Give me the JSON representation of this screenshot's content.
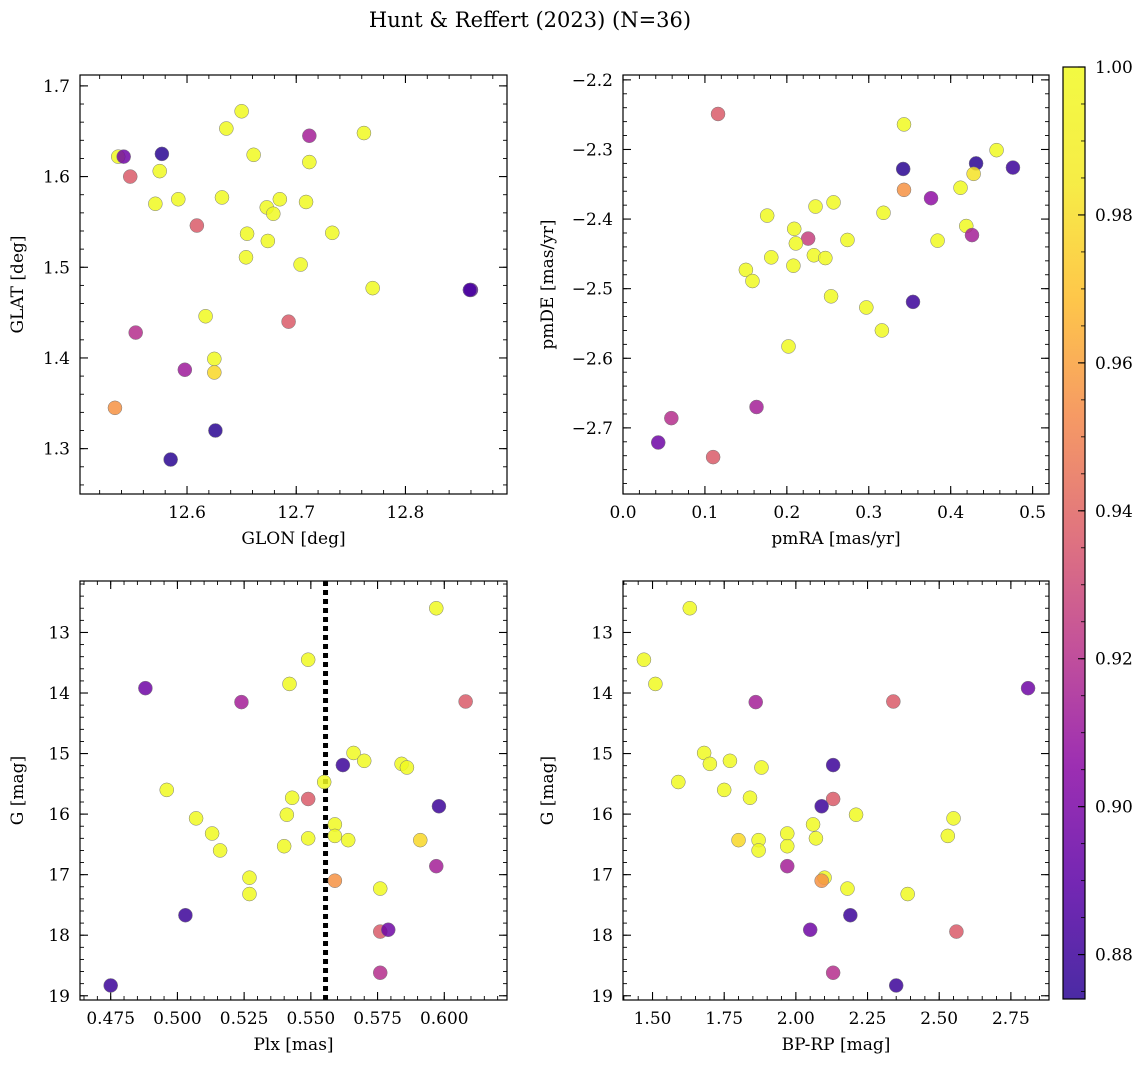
{
  "title": "Hunt & Reffert (2023) (N=36)",
  "colorbar": {
    "range": [
      0.874,
      1.0
    ],
    "ticks": [
      0.88,
      0.9,
      0.92,
      0.94,
      0.96,
      0.98,
      1.0
    ],
    "tick_labels": [
      "0.88",
      "0.90",
      "0.92",
      "0.94",
      "0.96",
      "0.98",
      "1.00"
    ],
    "colormap": "plasma"
  },
  "chart_data": [
    {
      "type": "scatter",
      "id": "pos",
      "xlabel": "GLON [deg]",
      "ylabel": "GLAT [deg]",
      "xlim": [
        12.502,
        12.893
      ],
      "ylim": [
        1.25,
        1.712
      ],
      "y_inverted": false,
      "xticks": [
        12.6,
        12.7,
        12.8
      ],
      "xtick_labels": [
        "12.6",
        "12.7",
        "12.8"
      ],
      "yticks": [
        1.3,
        1.4,
        1.5,
        1.6,
        1.7
      ],
      "ytick_labels": [
        "1.3",
        "1.4",
        "1.5",
        "1.6",
        "1.7"
      ],
      "x_minor_step": 0.02,
      "y_minor_step": 0.02,
      "points": [
        {
          "x": 12.537,
          "y": 1.622,
          "c": 1.0
        },
        {
          "x": 12.542,
          "y": 1.622,
          "c": 0.895
        },
        {
          "x": 12.548,
          "y": 1.6,
          "c": 0.935
        },
        {
          "x": 12.577,
          "y": 1.625,
          "c": 0.878
        },
        {
          "x": 12.575,
          "y": 1.606,
          "c": 1.0
        },
        {
          "x": 12.592,
          "y": 1.575,
          "c": 1.0
        },
        {
          "x": 12.571,
          "y": 1.57,
          "c": 1.0
        },
        {
          "x": 12.609,
          "y": 1.546,
          "c": 0.935
        },
        {
          "x": 12.632,
          "y": 1.577,
          "c": 1.0
        },
        {
          "x": 12.636,
          "y": 1.653,
          "c": 1.0
        },
        {
          "x": 12.65,
          "y": 1.672,
          "c": 1.0
        },
        {
          "x": 12.661,
          "y": 1.624,
          "c": 1.0
        },
        {
          "x": 12.712,
          "y": 1.645,
          "c": 0.912
        },
        {
          "x": 12.762,
          "y": 1.648,
          "c": 1.0
        },
        {
          "x": 12.712,
          "y": 1.616,
          "c": 1.0
        },
        {
          "x": 12.685,
          "y": 1.575,
          "c": 1.0
        },
        {
          "x": 12.709,
          "y": 1.572,
          "c": 1.0
        },
        {
          "x": 12.673,
          "y": 1.566,
          "c": 1.0
        },
        {
          "x": 12.679,
          "y": 1.559,
          "c": 1.0
        },
        {
          "x": 12.655,
          "y": 1.537,
          "c": 1.0
        },
        {
          "x": 12.674,
          "y": 1.529,
          "c": 1.0
        },
        {
          "x": 12.654,
          "y": 1.511,
          "c": 1.0
        },
        {
          "x": 12.733,
          "y": 1.538,
          "c": 1.0
        },
        {
          "x": 12.704,
          "y": 1.503,
          "c": 1.0
        },
        {
          "x": 12.77,
          "y": 1.477,
          "c": 1.0
        },
        {
          "x": 12.86,
          "y": 1.475,
          "c": 0.89
        },
        {
          "x": 12.553,
          "y": 1.428,
          "c": 0.918
        },
        {
          "x": 12.617,
          "y": 1.446,
          "c": 1.0
        },
        {
          "x": 12.693,
          "y": 1.44,
          "c": 0.935
        },
        {
          "x": 12.625,
          "y": 1.399,
          "c": 1.0
        },
        {
          "x": 12.625,
          "y": 1.384,
          "c": 0.975
        },
        {
          "x": 12.598,
          "y": 1.387,
          "c": 0.91
        },
        {
          "x": 12.534,
          "y": 1.345,
          "c": 0.955
        },
        {
          "x": 12.626,
          "y": 1.32,
          "c": 0.878
        },
        {
          "x": 12.585,
          "y": 1.288,
          "c": 0.878
        },
        {
          "x": 12.859,
          "y": 1.475,
          "c": 0.885
        }
      ]
    },
    {
      "type": "scatter",
      "id": "pm",
      "xlabel": "pmRA [mas/yr]",
      "ylabel": "pmDE [mas/yr]",
      "xlim": [
        0.0,
        0.52
      ],
      "ylim": [
        -2.795,
        -2.193
      ],
      "y_inverted": false,
      "xticks": [
        0.0,
        0.1,
        0.2,
        0.3,
        0.4,
        0.5
      ],
      "xtick_labels": [
        "0.0",
        "0.1",
        "0.2",
        "0.3",
        "0.4",
        "0.5"
      ],
      "yticks": [
        -2.7,
        -2.6,
        -2.5,
        -2.4,
        -2.3,
        -2.2
      ],
      "ytick_labels": [
        "−2.7",
        "−2.6",
        "−2.5",
        "−2.4",
        "−2.3",
        "−2.2"
      ],
      "x_minor_step": 0.02,
      "y_minor_step": 0.02,
      "points": [
        {
          "x": 0.116,
          "y": -2.249,
          "c": 0.935
        },
        {
          "x": 0.343,
          "y": -2.264,
          "c": 1.0
        },
        {
          "x": 0.456,
          "y": -2.301,
          "c": 1.0
        },
        {
          "x": 0.342,
          "y": -2.328,
          "c": 0.878
        },
        {
          "x": 0.431,
          "y": -2.32,
          "c": 0.878
        },
        {
          "x": 0.476,
          "y": -2.326,
          "c": 0.882
        },
        {
          "x": 0.428,
          "y": -2.335,
          "c": 0.978
        },
        {
          "x": 0.343,
          "y": -2.358,
          "c": 0.955
        },
        {
          "x": 0.412,
          "y": -2.355,
          "c": 1.0
        },
        {
          "x": 0.376,
          "y": -2.37,
          "c": 0.905
        },
        {
          "x": 0.257,
          "y": -2.376,
          "c": 1.0
        },
        {
          "x": 0.235,
          "y": -2.382,
          "c": 1.0
        },
        {
          "x": 0.176,
          "y": -2.395,
          "c": 1.0
        },
        {
          "x": 0.318,
          "y": -2.391,
          "c": 1.0
        },
        {
          "x": 0.209,
          "y": -2.414,
          "c": 1.0
        },
        {
          "x": 0.419,
          "y": -2.41,
          "c": 1.0
        },
        {
          "x": 0.226,
          "y": -2.428,
          "c": 0.925
        },
        {
          "x": 0.211,
          "y": -2.435,
          "c": 1.0
        },
        {
          "x": 0.274,
          "y": -2.43,
          "c": 1.0
        },
        {
          "x": 0.384,
          "y": -2.431,
          "c": 1.0
        },
        {
          "x": 0.426,
          "y": -2.423,
          "c": 0.912
        },
        {
          "x": 0.181,
          "y": -2.455,
          "c": 1.0
        },
        {
          "x": 0.233,
          "y": -2.452,
          "c": 1.0
        },
        {
          "x": 0.247,
          "y": -2.456,
          "c": 1.0
        },
        {
          "x": 0.208,
          "y": -2.467,
          "c": 1.0
        },
        {
          "x": 0.15,
          "y": -2.473,
          "c": 1.0
        },
        {
          "x": 0.158,
          "y": -2.489,
          "c": 1.0
        },
        {
          "x": 0.254,
          "y": -2.511,
          "c": 1.0
        },
        {
          "x": 0.354,
          "y": -2.519,
          "c": 0.882
        },
        {
          "x": 0.297,
          "y": -2.527,
          "c": 1.0
        },
        {
          "x": 0.316,
          "y": -2.56,
          "c": 1.0
        },
        {
          "x": 0.202,
          "y": -2.583,
          "c": 1.0
        },
        {
          "x": 0.163,
          "y": -2.67,
          "c": 0.912
        },
        {
          "x": 0.059,
          "y": -2.686,
          "c": 0.918
        },
        {
          "x": 0.043,
          "y": -2.721,
          "c": 0.895
        },
        {
          "x": 0.11,
          "y": -2.742,
          "c": 0.935
        }
      ]
    },
    {
      "type": "scatter",
      "id": "cmd-plx",
      "xlabel": "Plx [mas]",
      "ylabel": "G [mag]",
      "xlim": [
        0.4635,
        0.6235
      ],
      "ylim": [
        19.07,
        12.15
      ],
      "y_inverted": true,
      "xticks": [
        0.475,
        0.5,
        0.525,
        0.55,
        0.575,
        0.6
      ],
      "xtick_labels": [
        "0.475",
        "0.500",
        "0.525",
        "0.550",
        "0.575",
        "0.600"
      ],
      "yticks": [
        13,
        14,
        15,
        16,
        17,
        18,
        19
      ],
      "ytick_labels": [
        "13",
        "14",
        "15",
        "16",
        "17",
        "18",
        "19"
      ],
      "x_minor_step": 0.005,
      "y_minor_step": 0.2,
      "vline": {
        "x": 0.5555,
        "style": "dotted"
      },
      "points": [
        {
          "x": 0.597,
          "y": 12.6,
          "c": 1.0
        },
        {
          "x": 0.549,
          "y": 13.45,
          "c": 1.0
        },
        {
          "x": 0.542,
          "y": 13.85,
          "c": 1.0
        },
        {
          "x": 0.488,
          "y": 13.92,
          "c": 0.895
        },
        {
          "x": 0.524,
          "y": 14.15,
          "c": 0.912
        },
        {
          "x": 0.608,
          "y": 14.14,
          "c": 0.935
        },
        {
          "x": 0.566,
          "y": 14.99,
          "c": 1.0
        },
        {
          "x": 0.57,
          "y": 15.12,
          "c": 1.0
        },
        {
          "x": 0.584,
          "y": 15.17,
          "c": 1.0
        },
        {
          "x": 0.586,
          "y": 15.23,
          "c": 1.0
        },
        {
          "x": 0.562,
          "y": 15.19,
          "c": 0.882
        },
        {
          "x": 0.555,
          "y": 15.47,
          "c": 1.0
        },
        {
          "x": 0.496,
          "y": 15.6,
          "c": 1.0
        },
        {
          "x": 0.543,
          "y": 15.73,
          "c": 1.0
        },
        {
          "x": 0.549,
          "y": 15.75,
          "c": 0.935
        },
        {
          "x": 0.598,
          "y": 15.87,
          "c": 0.882
        },
        {
          "x": 0.541,
          "y": 16.01,
          "c": 1.0
        },
        {
          "x": 0.507,
          "y": 16.07,
          "c": 1.0
        },
        {
          "x": 0.559,
          "y": 16.17,
          "c": 1.0
        },
        {
          "x": 0.513,
          "y": 16.32,
          "c": 1.0
        },
        {
          "x": 0.559,
          "y": 16.36,
          "c": 1.0
        },
        {
          "x": 0.549,
          "y": 16.4,
          "c": 1.0
        },
        {
          "x": 0.564,
          "y": 16.43,
          "c": 1.0
        },
        {
          "x": 0.591,
          "y": 16.43,
          "c": 0.975
        },
        {
          "x": 0.54,
          "y": 16.53,
          "c": 1.0
        },
        {
          "x": 0.516,
          "y": 16.6,
          "c": 1.0
        },
        {
          "x": 0.597,
          "y": 16.86,
          "c": 0.912
        },
        {
          "x": 0.527,
          "y": 17.05,
          "c": 1.0
        },
        {
          "x": 0.559,
          "y": 17.1,
          "c": 0.955
        },
        {
          "x": 0.576,
          "y": 17.23,
          "c": 1.0
        },
        {
          "x": 0.527,
          "y": 17.32,
          "c": 1.0
        },
        {
          "x": 0.503,
          "y": 17.67,
          "c": 0.882
        },
        {
          "x": 0.576,
          "y": 17.94,
          "c": 0.935
        },
        {
          "x": 0.579,
          "y": 17.91,
          "c": 0.895
        },
        {
          "x": 0.576,
          "y": 18.62,
          "c": 0.918
        },
        {
          "x": 0.475,
          "y": 18.83,
          "c": 0.882
        }
      ]
    },
    {
      "type": "scatter",
      "id": "cmd-color",
      "xlabel": "BP-RP [mag]",
      "ylabel": "G [mag]",
      "xlim": [
        1.397,
        2.883
      ],
      "ylim": [
        19.07,
        12.15
      ],
      "y_inverted": true,
      "xticks": [
        1.5,
        1.75,
        2.0,
        2.25,
        2.5,
        2.75
      ],
      "xtick_labels": [
        "1.50",
        "1.75",
        "2.00",
        "2.25",
        "2.50",
        "2.75"
      ],
      "yticks": [
        13,
        14,
        15,
        16,
        17,
        18,
        19
      ],
      "ytick_labels": [
        "13",
        "14",
        "15",
        "16",
        "17",
        "18",
        "19"
      ],
      "x_minor_step": 0.05,
      "y_minor_step": 0.2,
      "points": [
        {
          "x": 1.63,
          "y": 12.6,
          "c": 1.0
        },
        {
          "x": 1.47,
          "y": 13.45,
          "c": 1.0
        },
        {
          "x": 1.51,
          "y": 13.85,
          "c": 1.0
        },
        {
          "x": 2.81,
          "y": 13.92,
          "c": 0.895
        },
        {
          "x": 1.86,
          "y": 14.15,
          "c": 0.912
        },
        {
          "x": 2.34,
          "y": 14.14,
          "c": 0.935
        },
        {
          "x": 1.68,
          "y": 14.99,
          "c": 1.0
        },
        {
          "x": 1.7,
          "y": 15.17,
          "c": 1.0
        },
        {
          "x": 1.77,
          "y": 15.12,
          "c": 1.0
        },
        {
          "x": 1.88,
          "y": 15.23,
          "c": 1.0
        },
        {
          "x": 2.13,
          "y": 15.19,
          "c": 0.882
        },
        {
          "x": 1.59,
          "y": 15.47,
          "c": 1.0
        },
        {
          "x": 1.75,
          "y": 15.6,
          "c": 1.0
        },
        {
          "x": 1.84,
          "y": 15.73,
          "c": 1.0
        },
        {
          "x": 2.13,
          "y": 15.75,
          "c": 0.935
        },
        {
          "x": 2.09,
          "y": 15.87,
          "c": 0.882
        },
        {
          "x": 2.21,
          "y": 16.01,
          "c": 1.0
        },
        {
          "x": 2.55,
          "y": 16.07,
          "c": 1.0
        },
        {
          "x": 2.06,
          "y": 16.17,
          "c": 1.0
        },
        {
          "x": 1.97,
          "y": 16.32,
          "c": 1.0
        },
        {
          "x": 2.53,
          "y": 16.36,
          "c": 1.0
        },
        {
          "x": 2.07,
          "y": 16.4,
          "c": 1.0
        },
        {
          "x": 1.87,
          "y": 16.43,
          "c": 1.0
        },
        {
          "x": 1.8,
          "y": 16.43,
          "c": 0.975
        },
        {
          "x": 1.97,
          "y": 16.53,
          "c": 1.0
        },
        {
          "x": 1.87,
          "y": 16.6,
          "c": 1.0
        },
        {
          "x": 1.97,
          "y": 16.86,
          "c": 0.912
        },
        {
          "x": 2.1,
          "y": 17.05,
          "c": 1.0
        },
        {
          "x": 2.09,
          "y": 17.1,
          "c": 0.955
        },
        {
          "x": 2.18,
          "y": 17.23,
          "c": 1.0
        },
        {
          "x": 2.39,
          "y": 17.32,
          "c": 1.0
        },
        {
          "x": 2.19,
          "y": 17.67,
          "c": 0.882
        },
        {
          "x": 2.56,
          "y": 17.94,
          "c": 0.935
        },
        {
          "x": 2.05,
          "y": 17.91,
          "c": 0.895
        },
        {
          "x": 2.13,
          "y": 18.62,
          "c": 0.918
        },
        {
          "x": 2.35,
          "y": 18.83,
          "c": 0.882
        }
      ]
    }
  ]
}
